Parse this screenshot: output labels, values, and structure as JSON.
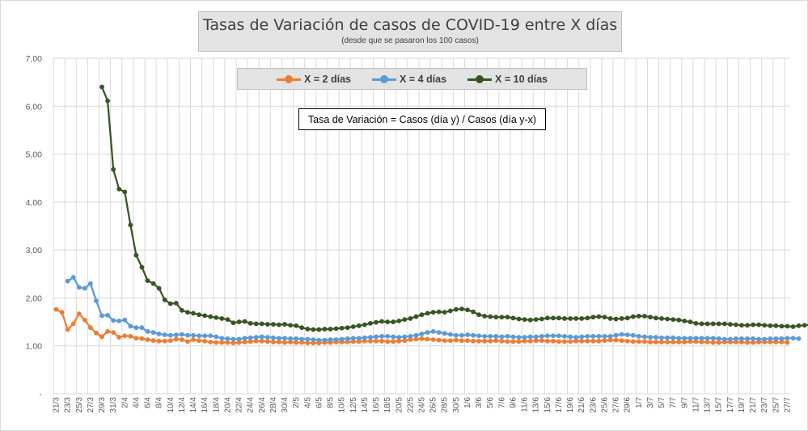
{
  "colors": {
    "x2": "#ed7d31",
    "x4": "#5b9bd5",
    "x10": "#375623",
    "grid": "#d9d9d9"
  },
  "chart_data": {
    "type": "line",
    "title": "Tasas de Variación de casos de COVID-19 entre X días",
    "subtitle": "(desde que se pasaron los 100 casos)",
    "annotation": "Tasa de Variación = Casos (día y) / Casos (día y-x)",
    "xlabel": "",
    "ylabel": "",
    "ylim": [
      0,
      7
    ],
    "ytick_labels": [
      "-",
      "1,00",
      "2,00",
      "3,00",
      "4,00",
      "5,00",
      "6,00",
      "7,00"
    ],
    "grid": true,
    "legend_position": "top-center",
    "x_start": "21/3",
    "x_end": "27/7",
    "x": [
      "21/3",
      "22/3",
      "23/3",
      "24/3",
      "25/3",
      "26/3",
      "27/3",
      "28/3",
      "29/3",
      "30/3",
      "31/3",
      "1/4",
      "2/4",
      "3/4",
      "4/4",
      "5/4",
      "6/4",
      "7/4",
      "8/4",
      "9/4",
      "10/4",
      "11/4",
      "12/4",
      "13/4",
      "14/4",
      "15/4",
      "16/4",
      "17/4",
      "18/4",
      "19/4",
      "20/4",
      "21/4",
      "22/4",
      "23/4",
      "24/4",
      "25/4",
      "26/4",
      "27/4",
      "28/4",
      "29/4",
      "30/4",
      "1/5",
      "2/5",
      "3/5",
      "4/5",
      "5/5",
      "6/5",
      "7/5",
      "8/5",
      "9/5",
      "10/5",
      "11/5",
      "12/5",
      "13/5",
      "14/5",
      "15/5",
      "16/5",
      "17/5",
      "18/5",
      "19/5",
      "20/5",
      "21/5",
      "22/5",
      "23/5",
      "24/5",
      "25/5",
      "26/5",
      "27/5",
      "28/5",
      "29/5",
      "30/5",
      "31/5",
      "1/6",
      "2/6",
      "3/6",
      "4/6",
      "5/6",
      "6/6",
      "7/6",
      "8/6",
      "9/6",
      "10/6",
      "11/6",
      "12/6",
      "13/6",
      "14/6",
      "15/6",
      "16/6",
      "17/6",
      "18/6",
      "19/6",
      "20/6",
      "21/6",
      "22/6",
      "23/6",
      "24/6",
      "25/6",
      "26/6",
      "27/6",
      "28/6",
      "29/6",
      "30/6",
      "1/7",
      "2/7",
      "3/7",
      "4/7",
      "5/7",
      "6/7",
      "7/7",
      "8/7",
      "9/7",
      "10/7",
      "11/7",
      "12/7",
      "13/7",
      "14/7",
      "15/7",
      "16/7",
      "17/7",
      "18/7",
      "19/7",
      "20/7",
      "21/7",
      "22/7",
      "23/7",
      "24/7",
      "25/7",
      "26/7",
      "27/7"
    ],
    "tick_labels": [
      "21/3",
      "23/3",
      "25/3",
      "27/3",
      "29/3",
      "31/3",
      "2/4",
      "4/4",
      "6/4",
      "8/4",
      "10/4",
      "12/4",
      "14/4",
      "16/4",
      "18/4",
      "20/4",
      "22/4",
      "24/4",
      "26/4",
      "28/4",
      "30/4",
      "2/5",
      "4/5",
      "6/5",
      "8/5",
      "10/5",
      "12/5",
      "14/5",
      "16/5",
      "18/5",
      "20/5",
      "22/5",
      "24/5",
      "26/5",
      "28/5",
      "30/5",
      "1/6",
      "3/6",
      "5/6",
      "7/6",
      "9/6",
      "11/6",
      "13/6",
      "15/6",
      "17/6",
      "19/6",
      "21/6",
      "23/6",
      "25/6",
      "27/6",
      "29/6",
      "1/7",
      "3/7",
      "5/7",
      "7/7",
      "9/7",
      "11/7",
      "13/7",
      "15/7",
      "17/7",
      "19/7",
      "21/7",
      "23/7",
      "25/7",
      "27/7"
    ],
    "series": [
      {
        "name": "X = 2 días",
        "start_index": 0,
        "values": [
          1.76,
          1.7,
          1.34,
          1.46,
          1.67,
          1.54,
          1.38,
          1.27,
          1.19,
          1.3,
          1.28,
          1.18,
          1.21,
          1.2,
          1.16,
          1.15,
          1.13,
          1.11,
          1.1,
          1.1,
          1.11,
          1.14,
          1.13,
          1.09,
          1.13,
          1.11,
          1.1,
          1.08,
          1.07,
          1.07,
          1.07,
          1.06,
          1.07,
          1.08,
          1.09,
          1.1,
          1.1,
          1.09,
          1.08,
          1.08,
          1.07,
          1.08,
          1.07,
          1.07,
          1.06,
          1.06,
          1.06,
          1.07,
          1.07,
          1.08,
          1.08,
          1.08,
          1.09,
          1.09,
          1.1,
          1.1,
          1.1,
          1.1,
          1.09,
          1.09,
          1.1,
          1.11,
          1.13,
          1.14,
          1.15,
          1.14,
          1.13,
          1.12,
          1.11,
          1.11,
          1.12,
          1.11,
          1.11,
          1.1,
          1.1,
          1.1,
          1.1,
          1.11,
          1.1,
          1.09,
          1.09,
          1.09,
          1.1,
          1.1,
          1.11,
          1.11,
          1.1,
          1.1,
          1.09,
          1.09,
          1.09,
          1.1,
          1.1,
          1.1,
          1.1,
          1.1,
          1.11,
          1.12,
          1.12,
          1.11,
          1.1,
          1.09,
          1.09,
          1.09,
          1.08,
          1.08,
          1.08,
          1.08,
          1.08,
          1.08,
          1.08,
          1.09,
          1.09,
          1.08,
          1.08,
          1.07,
          1.07,
          1.08,
          1.08,
          1.08,
          1.08,
          1.07,
          1.07,
          1.08,
          1.08,
          1.08,
          1.08,
          1.08,
          1.07
        ]
      },
      {
        "name": "X = 4 días",
        "start_index": 2,
        "values": [
          2.35,
          2.43,
          2.22,
          2.2,
          2.3,
          1.94,
          1.63,
          1.64,
          1.53,
          1.52,
          1.54,
          1.41,
          1.38,
          1.38,
          1.3,
          1.28,
          1.25,
          1.23,
          1.22,
          1.23,
          1.24,
          1.22,
          1.22,
          1.21,
          1.21,
          1.21,
          1.19,
          1.16,
          1.15,
          1.14,
          1.14,
          1.16,
          1.17,
          1.18,
          1.19,
          1.18,
          1.17,
          1.16,
          1.16,
          1.15,
          1.15,
          1.14,
          1.14,
          1.13,
          1.12,
          1.12,
          1.13,
          1.13,
          1.14,
          1.15,
          1.16,
          1.16,
          1.17,
          1.18,
          1.19,
          1.2,
          1.2,
          1.19,
          1.18,
          1.19,
          1.2,
          1.22,
          1.25,
          1.28,
          1.3,
          1.28,
          1.26,
          1.24,
          1.22,
          1.22,
          1.23,
          1.22,
          1.21,
          1.2,
          1.2,
          1.2,
          1.19,
          1.2,
          1.19,
          1.18,
          1.18,
          1.19,
          1.19,
          1.2,
          1.21,
          1.21,
          1.21,
          1.2,
          1.19,
          1.18,
          1.19,
          1.2,
          1.2,
          1.2,
          1.2,
          1.2,
          1.22,
          1.24,
          1.23,
          1.22,
          1.2,
          1.19,
          1.18,
          1.18,
          1.17,
          1.17,
          1.17,
          1.16,
          1.16,
          1.16,
          1.16,
          1.16,
          1.16,
          1.16,
          1.15,
          1.14,
          1.14,
          1.15,
          1.15,
          1.15,
          1.15,
          1.14,
          1.14,
          1.15,
          1.15,
          1.15,
          1.16,
          1.16,
          1.15
        ]
      },
      {
        "name": "X = 10 días",
        "start_index": 8,
        "values": [
          6.4,
          6.11,
          4.68,
          4.27,
          4.21,
          3.52,
          2.89,
          2.64,
          2.36,
          2.3,
          2.2,
          1.96,
          1.88,
          1.89,
          1.74,
          1.7,
          1.68,
          1.65,
          1.63,
          1.61,
          1.59,
          1.57,
          1.55,
          1.48,
          1.5,
          1.51,
          1.47,
          1.46,
          1.46,
          1.45,
          1.45,
          1.44,
          1.45,
          1.43,
          1.42,
          1.38,
          1.35,
          1.34,
          1.34,
          1.35,
          1.35,
          1.36,
          1.37,
          1.38,
          1.4,
          1.42,
          1.44,
          1.47,
          1.49,
          1.51,
          1.5,
          1.5,
          1.52,
          1.55,
          1.57,
          1.61,
          1.65,
          1.68,
          1.7,
          1.71,
          1.7,
          1.73,
          1.76,
          1.77,
          1.75,
          1.71,
          1.65,
          1.62,
          1.61,
          1.6,
          1.6,
          1.6,
          1.58,
          1.56,
          1.55,
          1.54,
          1.55,
          1.56,
          1.58,
          1.58,
          1.58,
          1.57,
          1.57,
          1.57,
          1.57,
          1.58,
          1.6,
          1.61,
          1.6,
          1.57,
          1.56,
          1.57,
          1.58,
          1.61,
          1.62,
          1.62,
          1.6,
          1.58,
          1.57,
          1.56,
          1.55,
          1.54,
          1.52,
          1.5,
          1.47,
          1.46,
          1.46,
          1.46,
          1.46,
          1.46,
          1.45,
          1.44,
          1.43,
          1.43,
          1.44,
          1.44,
          1.43,
          1.42,
          1.42,
          1.41,
          1.41,
          1.4,
          1.42,
          1.43,
          1.44,
          1.44,
          1.43,
          1.42,
          1.41
        ]
      }
    ]
  }
}
